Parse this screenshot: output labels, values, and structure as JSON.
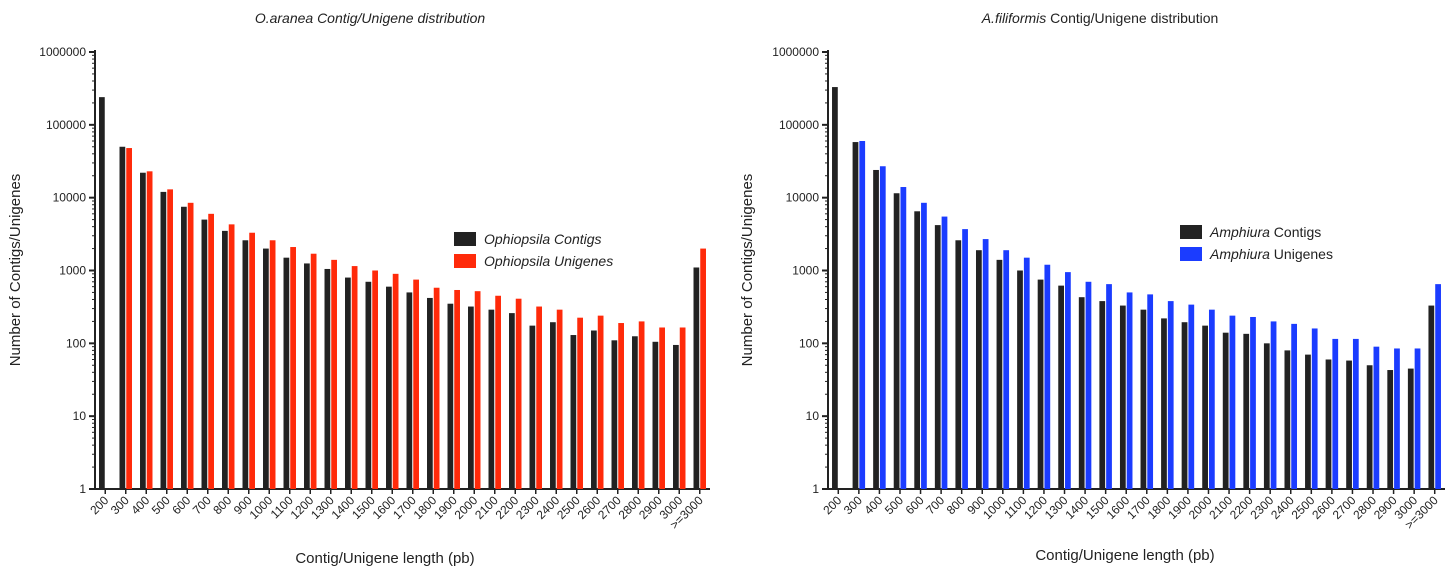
{
  "chart_data": [
    {
      "type": "bar",
      "title_parts": [
        {
          "text": "O.aranea Contig/Unigene distribution",
          "italic": true
        }
      ],
      "xlabel": "Contig/Unigene length (pb)",
      "ylabel": "Number of Contigs/Unigenes",
      "yscale": "log",
      "ylim": [
        1,
        1000000
      ],
      "yticks": [
        "1",
        "10",
        "100",
        "1000",
        "10000",
        "100000",
        "1000000"
      ],
      "categories": [
        "200",
        "300",
        "400",
        "500",
        "600",
        "700",
        "800",
        "900",
        "1000",
        "1100",
        "1200",
        "1300",
        "1400",
        "1500",
        "1600",
        "1700",
        "1800",
        "1900",
        "2000",
        "2100",
        "2200",
        "2300",
        "2400",
        "2500",
        "2600",
        "2700",
        "2800",
        "2900",
        "3000",
        ">=3000"
      ],
      "legend_position": "right",
      "series": [
        {
          "name": "Ophiopsila Contigs",
          "name_parts": [
            {
              "text": "Ophiopsila Contigs",
              "italic": true
            }
          ],
          "color": "#222222",
          "values": [
            240000,
            50000,
            22000,
            12000,
            7500,
            5000,
            3500,
            2600,
            2000,
            1500,
            1250,
            1050,
            800,
            700,
            600,
            500,
            420,
            350,
            320,
            290,
            260,
            175,
            195,
            130,
            150,
            110,
            125,
            105,
            95,
            1100
          ]
        },
        {
          "name": "Ophiopsila Unigenes",
          "name_parts": [
            {
              "text": "Ophiopsila Unigenes",
              "italic": true
            }
          ],
          "color": "#ff2a0a",
          "values": [
            null,
            48000,
            23000,
            13000,
            8500,
            6000,
            4300,
            3300,
            2600,
            2100,
            1700,
            1400,
            1150,
            1000,
            900,
            750,
            580,
            540,
            520,
            450,
            410,
            320,
            290,
            225,
            240,
            190,
            200,
            165,
            165,
            2000
          ]
        }
      ]
    },
    {
      "type": "bar",
      "title_parts": [
        {
          "text": "A.filiformis",
          "italic": true
        },
        {
          "text": " Contig/Unigene distribution",
          "italic": false
        }
      ],
      "xlabel": "Contig/Unigene length (pb)",
      "ylabel": "Number of Contigs/Unigenes",
      "yscale": "log",
      "ylim": [
        1,
        1000000
      ],
      "yticks": [
        "1",
        "10",
        "100",
        "1000",
        "10000",
        "100000",
        "1000000"
      ],
      "categories": [
        "200",
        "300",
        "400",
        "500",
        "600",
        "700",
        "800",
        "900",
        "1000",
        "1100",
        "1200",
        "1300",
        "1400",
        "1500",
        "1600",
        "1700",
        "1800",
        "1900",
        "2000",
        "2100",
        "2200",
        "2300",
        "2400",
        "2500",
        "2600",
        "2700",
        "2800",
        "2900",
        "3000",
        ">=3000"
      ],
      "legend_position": "right",
      "series": [
        {
          "name": "Amphiura Contigs",
          "name_parts": [
            {
              "text": "Amphiura",
              "italic": true
            },
            {
              "text": " Contigs",
              "italic": false
            }
          ],
          "color": "#222222",
          "values": [
            330000,
            58000,
            24000,
            11500,
            6500,
            4200,
            2600,
            1900,
            1400,
            1000,
            750,
            620,
            430,
            380,
            330,
            290,
            220,
            195,
            175,
            140,
            135,
            100,
            80,
            70,
            60,
            58,
            50,
            43,
            45,
            330
          ]
        },
        {
          "name": "Amphiura Unigenes",
          "name_parts": [
            {
              "text": "Amphiura",
              "italic": true
            },
            {
              "text": " Unigenes",
              "italic": false
            }
          ],
          "color": "#1b3cff",
          "values": [
            null,
            60000,
            27000,
            14000,
            8500,
            5500,
            3700,
            2700,
            1900,
            1500,
            1200,
            950,
            700,
            650,
            500,
            470,
            380,
            340,
            290,
            240,
            230,
            200,
            185,
            160,
            115,
            115,
            90,
            85,
            85,
            650
          ]
        }
      ]
    }
  ]
}
